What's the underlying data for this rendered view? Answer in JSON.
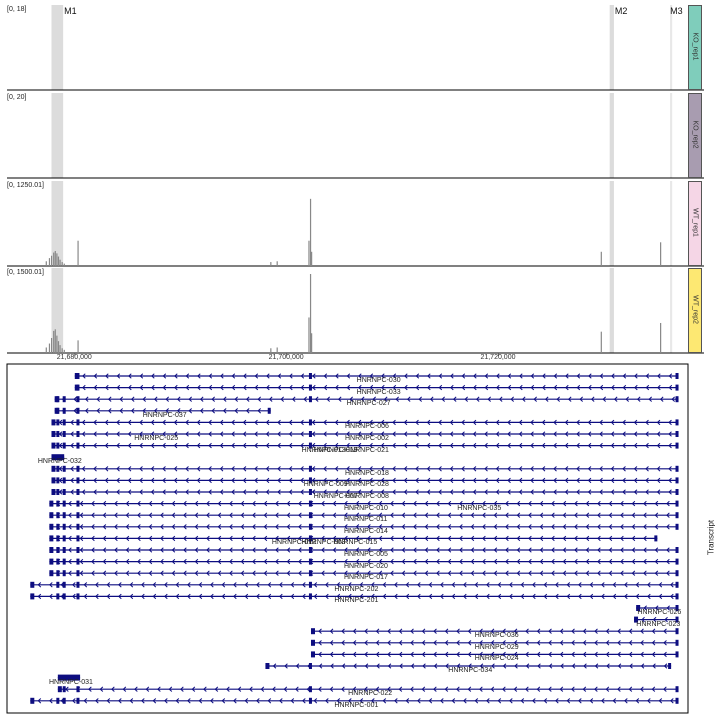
{
  "tracks": [
    {
      "name": "KO_rep1",
      "range_label": "[0, 18]",
      "color": "#7fcdbb",
      "max": 18,
      "profile": "none"
    },
    {
      "name": "KO_rep2",
      "range_label": "[0, 20]",
      "color": "#a89cb0",
      "max": 20,
      "profile": "none"
    },
    {
      "name": "WT_rep1",
      "range_label": "[0, 1250.01]",
      "color": "#f5d6e6",
      "max": 1250.01,
      "profile": "wt1"
    },
    {
      "name": "WT_rep2",
      "range_label": "[0, 1500.01]",
      "color": "#fde872",
      "max": 1500.01,
      "profile": "wt2"
    }
  ],
  "motifs": [
    {
      "label": "M1",
      "start": 21677800,
      "end": 21678900
    },
    {
      "label": "M2",
      "start": 21730500,
      "end": 21730900
    },
    {
      "label": "M3",
      "start": 21736200,
      "end": 21736400
    }
  ],
  "genome": {
    "start": 21673600,
    "end": 21737800
  },
  "axis_ticks": [
    {
      "label": "21,680,000",
      "pos": 21680000
    },
    {
      "label": "21,700,000",
      "pos": 21700000
    },
    {
      "label": "21,720,000",
      "pos": 21720000
    }
  ],
  "transcript_track_label": "Transcript",
  "transcripts": [
    {
      "name": "HNRNPC-030",
      "start": 21680000,
      "end": 21737000
    },
    {
      "name": "HNRNPC-033",
      "start": 21680000,
      "end": 21737000
    },
    {
      "name": "HNRNPC-027",
      "start": 21678100,
      "end": 21737000
    },
    {
      "name": "HNRNPC-037",
      "start": 21678100,
      "end": 21698500
    },
    {
      "name": "HNRNPC-006",
      "start": 21677800,
      "end": 21737000
    },
    {
      "name": "HNRNPC-002",
      "start": 21677800,
      "end": 21737000
    },
    {
      "name": "HNRNPC-021",
      "start": 21677800,
      "end": 21737000
    },
    {
      "name": "HNRNPC-032",
      "start": 21677800,
      "end": 21679000
    },
    {
      "name": "HNRNPC-018",
      "start": 21677800,
      "end": 21737000
    },
    {
      "name": "HNRNPC-028",
      "start": 21677800,
      "end": 21737000
    },
    {
      "name": "HNRNPC-008",
      "start": 21677800,
      "end": 21737000
    },
    {
      "name": "HNRNPC-010",
      "start": 21677600,
      "end": 21737000
    },
    {
      "name": "HNRNPC-011",
      "start": 21677600,
      "end": 21737000
    },
    {
      "name": "HNRNPC-014",
      "start": 21677600,
      "end": 21737000
    },
    {
      "name": "HNRNPC-015",
      "start": 21677600,
      "end": 21735000
    },
    {
      "name": "HNRNPC-005",
      "start": 21677600,
      "end": 21737000
    },
    {
      "name": "HNRNPC-020",
      "start": 21677600,
      "end": 21737000
    },
    {
      "name": "HNRNPC-017",
      "start": 21677600,
      "end": 21737000
    },
    {
      "name": "HNRNPC-202",
      "start": 21675800,
      "end": 21737000
    },
    {
      "name": "HNRNPC-201",
      "start": 21675800,
      "end": 21737000
    },
    {
      "name": "HNRNPC-026",
      "start": 21733000,
      "end": 21737000
    },
    {
      "name": "HNRNPC-023",
      "start": 21732800,
      "end": 21737000
    },
    {
      "name": "HNRNPC-036",
      "start": 21702300,
      "end": 21737000
    },
    {
      "name": "HNRNPC-029",
      "start": 21702300,
      "end": 21737000
    },
    {
      "name": "HNRNPC-024",
      "start": 21702300,
      "end": 21737000
    },
    {
      "name": "HNRNPC-034",
      "start": 21698000,
      "end": 21736300
    },
    {
      "name": "HNRNPC-031",
      "start": 21678400,
      "end": 21680500
    },
    {
      "name": "HNRNPC-022",
      "start": 21678400,
      "end": 21737000
    },
    {
      "name": "HNRNPC-001",
      "start": 21675800,
      "end": 21737000
    }
  ],
  "extra_labels": [
    {
      "text": "HNRNPC-013",
      "start": 21700600,
      "end": 21706000,
      "row": 6
    },
    {
      "text": "HNRNPC-019",
      "start": 21702500,
      "end": 21706400,
      "row": 6
    },
    {
      "text": "HNRNPC-025",
      "start": 21685000,
      "end": 21690000,
      "row": 5
    },
    {
      "text": "HNRNPC-035",
      "start": 21715800,
      "end": 21720200,
      "row": 11
    },
    {
      "text": "HNRNPC-009",
      "start": 21702000,
      "end": 21705000,
      "row": 9
    },
    {
      "text": "HNRNPC-007",
      "start": 21702600,
      "end": 21706300,
      "row": 10
    },
    {
      "text": "HNRNPC-012",
      "start": 21698800,
      "end": 21702200,
      "row": 14
    },
    {
      "text": "HNRNPC-003",
      "start": 21701600,
      "end": 21705000,
      "row": 14
    }
  ]
}
